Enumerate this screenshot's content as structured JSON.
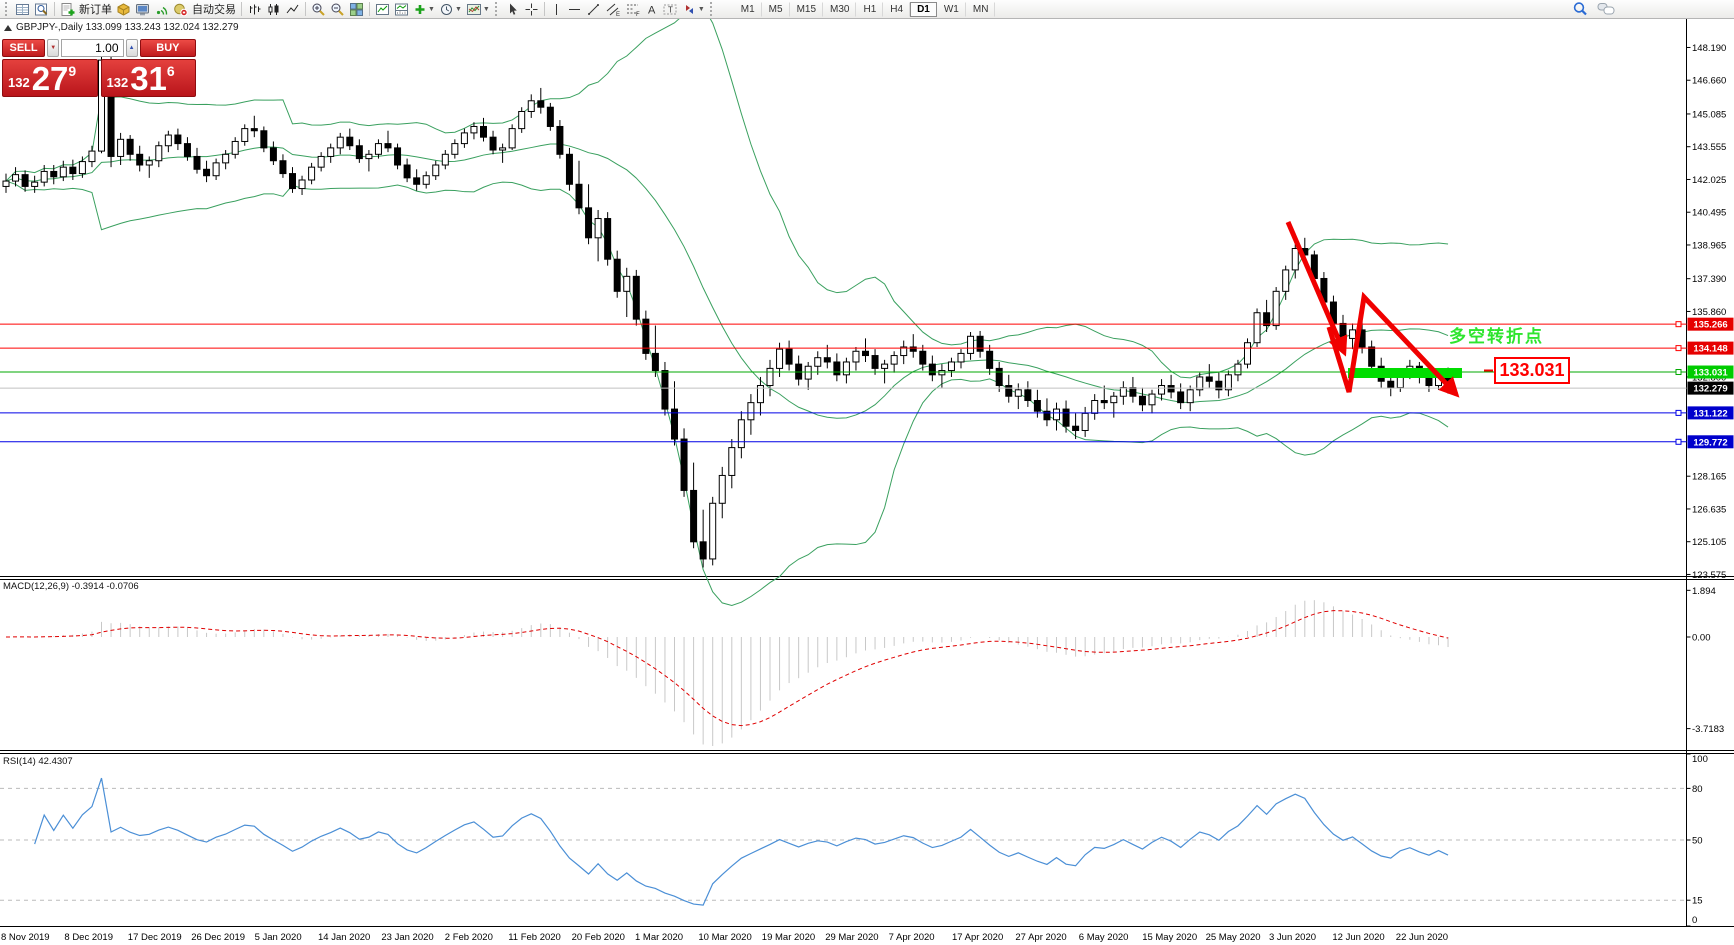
{
  "toolbar": {
    "new_order_label": "新订单",
    "autotrading_label": "自动交易",
    "timeframes": [
      "M1",
      "M5",
      "M15",
      "M30",
      "H1",
      "H4",
      "D1",
      "W1",
      "MN"
    ],
    "active_timeframe": "D1"
  },
  "symbol_header": {
    "text": "GBPJPY-,Daily  133.099 133.243 132.024 132.279"
  },
  "one_click": {
    "sell_label": "SELL",
    "buy_label": "BUY",
    "volume": "1.00",
    "sell_price_prefix": "132",
    "sell_price_main": "27",
    "sell_price_sup": "9",
    "buy_price_prefix": "132",
    "buy_price_main": "31",
    "buy_price_sup": "6"
  },
  "annotations": {
    "turning_point_text": "多空转折点",
    "price_callout": "133.031",
    "highlight_color": "#00dd00",
    "arrow_color": "#f00000"
  },
  "chart_data": {
    "type": "candlestick",
    "symbol": "GBPJPY-",
    "period": "Daily",
    "open": "133.099",
    "high": "133.243",
    "low": "132.024",
    "close": "132.279",
    "ylim": [
      123.55,
      149.52
    ],
    "grid": false,
    "price_ticks": [
      "148.190",
      "146.660",
      "145.085",
      "143.555",
      "142.025",
      "140.495",
      "138.965",
      "137.390",
      "135.860",
      "132.800",
      "128.165",
      "126.635",
      "125.105",
      "123.575"
    ],
    "hlines": [
      {
        "price": 135.266,
        "label": "135.266",
        "color": "#ff0000",
        "tag_bg": "#e60000",
        "handle": true
      },
      {
        "price": 134.148,
        "label": "134.148",
        "color": "#ff0000",
        "tag_bg": "#e60000",
        "handle": true
      },
      {
        "price": 133.031,
        "label": "133.031",
        "color": "#00a800",
        "tag_bg": "#00cc00",
        "handle": true
      },
      {
        "price": 132.279,
        "label": "132.279",
        "color": "#c0c0c0",
        "tag_bg": "#000000",
        "handle": false
      },
      {
        "price": 131.122,
        "label": "131.122",
        "color": "#0000e6",
        "tag_bg": "#0000cc",
        "handle": true
      },
      {
        "price": 129.772,
        "label": "129.772",
        "color": "#0000e6",
        "tag_bg": "#0000cc",
        "handle": true
      }
    ],
    "bollinger": {
      "period": 20,
      "deviation": 2,
      "color": "#3aa05f"
    },
    "macd": {
      "label": "MACD(12,26,9) -0.3914 -0.0706",
      "fast": 12,
      "slow": 26,
      "signal": 9,
      "value": -0.3914,
      "signal_value": -0.0706,
      "bar_color": "#c8c8c8",
      "signal_color": "#e00000",
      "axis_ticks": [
        {
          "t": "1.894",
          "v": 1.894
        },
        {
          "t": "0.00",
          "v": 0
        },
        {
          "t": "-3.7183",
          "v": -3.7183
        }
      ]
    },
    "rsi": {
      "label": "RSI(14) 42.4307",
      "period": 14,
      "value": 42.4307,
      "color": "#4b8fd6",
      "levels": [
        80,
        50,
        15
      ],
      "axis_ticks": [
        {
          "t": "100",
          "v": 100
        },
        {
          "t": "80",
          "v": 80
        },
        {
          "t": "50",
          "v": 50
        },
        {
          "t": "15",
          "v": 15
        },
        {
          "t": "0",
          "v": 0
        }
      ]
    },
    "dates": [
      "8 Nov 2019",
      "8 Dec 2019",
      "17 Dec 2019",
      "26 Dec 2019",
      "5 Jan 2020",
      "14 Jan 2020",
      "23 Jan 2020",
      "2 Feb 2020",
      "11 Feb 2020",
      "20 Feb 2020",
      "1 Mar 2020",
      "10 Mar 2020",
      "19 Mar 2020",
      "29 Mar 2020",
      "7 Apr 2020",
      "17 Apr 2020",
      "27 Apr 2020",
      "6 May 2020",
      "15 May 2020",
      "25 May 2020",
      "3 Jun 2020",
      "12 Jun 2020",
      "22 Jun 2020"
    ],
    "candles": [
      [
        141.7,
        142.3,
        141.4,
        141.95
      ],
      [
        141.95,
        142.6,
        141.7,
        142.25
      ],
      [
        142.25,
        142.45,
        141.45,
        141.7
      ],
      [
        141.7,
        142.2,
        141.4,
        141.9
      ],
      [
        141.9,
        142.7,
        141.7,
        142.4
      ],
      [
        142.4,
        142.7,
        141.8,
        142.15
      ],
      [
        142.15,
        142.9,
        141.95,
        142.6
      ],
      [
        142.6,
        142.95,
        142.0,
        142.3
      ],
      [
        142.3,
        143.1,
        142.1,
        142.86
      ],
      [
        142.86,
        143.6,
        142.6,
        143.35
      ],
      [
        143.35,
        148.1,
        143.25,
        147.6
      ],
      [
        147.6,
        147.8,
        142.6,
        143.1
      ],
      [
        143.1,
        144.2,
        142.7,
        143.9
      ],
      [
        143.9,
        144.1,
        142.9,
        143.2
      ],
      [
        143.2,
        143.6,
        142.4,
        142.7
      ],
      [
        142.7,
        143.1,
        142.1,
        142.9
      ],
      [
        142.9,
        143.8,
        142.6,
        143.6
      ],
      [
        143.6,
        144.3,
        143.3,
        144.1
      ],
      [
        144.1,
        144.4,
        143.4,
        143.7
      ],
      [
        143.7,
        144.0,
        142.9,
        143.1
      ],
      [
        143.1,
        143.5,
        142.3,
        142.5
      ],
      [
        142.5,
        142.9,
        141.9,
        142.2
      ],
      [
        142.2,
        143.0,
        142.0,
        142.8
      ],
      [
        142.8,
        143.4,
        142.5,
        143.2
      ],
      [
        143.2,
        144.0,
        143.0,
        143.8
      ],
      [
        143.8,
        144.6,
        143.6,
        144.4
      ],
      [
        144.4,
        145.0,
        144.0,
        144.3
      ],
      [
        144.3,
        144.5,
        143.3,
        143.5
      ],
      [
        143.5,
        143.8,
        142.7,
        142.9
      ],
      [
        142.9,
        143.2,
        142.1,
        142.3
      ],
      [
        142.3,
        142.6,
        141.4,
        141.6
      ],
      [
        141.6,
        142.2,
        141.3,
        142.0
      ],
      [
        142.0,
        142.8,
        141.8,
        142.6
      ],
      [
        142.6,
        143.3,
        142.4,
        143.1
      ],
      [
        143.1,
        143.7,
        142.8,
        143.5
      ],
      [
        143.5,
        144.2,
        143.2,
        144.0
      ],
      [
        144.0,
        144.4,
        143.4,
        143.6
      ],
      [
        143.6,
        143.9,
        142.8,
        143.0
      ],
      [
        143.0,
        143.4,
        142.4,
        143.2
      ],
      [
        143.2,
        143.9,
        143.0,
        143.7
      ],
      [
        143.7,
        144.3,
        143.3,
        143.5
      ],
      [
        143.5,
        143.7,
        142.5,
        142.7
      ],
      [
        142.7,
        143.0,
        141.9,
        142.1
      ],
      [
        142.1,
        142.5,
        141.5,
        141.8
      ],
      [
        141.8,
        142.4,
        141.6,
        142.2
      ],
      [
        142.2,
        142.9,
        142.0,
        142.7
      ],
      [
        142.7,
        143.4,
        142.5,
        143.2
      ],
      [
        143.2,
        143.9,
        143.0,
        143.7
      ],
      [
        143.7,
        144.4,
        143.5,
        144.2
      ],
      [
        144.2,
        144.7,
        143.9,
        144.5
      ],
      [
        144.5,
        144.9,
        143.8,
        144.0
      ],
      [
        144.0,
        144.3,
        143.2,
        143.4
      ],
      [
        143.4,
        143.7,
        142.8,
        143.5
      ],
      [
        143.5,
        144.6,
        143.4,
        144.4
      ],
      [
        144.4,
        145.4,
        144.2,
        145.2
      ],
      [
        145.2,
        146.0,
        144.9,
        145.7
      ],
      [
        145.7,
        146.3,
        145.1,
        145.4
      ],
      [
        145.4,
        145.6,
        144.3,
        144.5
      ],
      [
        144.5,
        144.8,
        143.0,
        143.2
      ],
      [
        143.2,
        143.5,
        141.5,
        141.8
      ],
      [
        141.8,
        142.9,
        140.4,
        140.7
      ],
      [
        140.7,
        141.8,
        139.0,
        139.3
      ],
      [
        139.3,
        140.6,
        138.2,
        140.2
      ],
      [
        140.2,
        140.5,
        138.0,
        138.3
      ],
      [
        138.3,
        138.7,
        136.5,
        136.8
      ],
      [
        136.8,
        137.9,
        135.6,
        137.5
      ],
      [
        137.5,
        137.8,
        135.2,
        135.5
      ],
      [
        135.5,
        135.9,
        133.6,
        133.9
      ],
      [
        133.9,
        135.2,
        132.8,
        133.1
      ],
      [
        133.1,
        133.5,
        131.0,
        131.3
      ],
      [
        131.3,
        132.6,
        129.6,
        129.9
      ],
      [
        129.9,
        130.4,
        127.2,
        127.5
      ],
      [
        127.5,
        128.8,
        124.8,
        125.1
      ],
      [
        125.1,
        126.6,
        123.9,
        124.3
      ],
      [
        124.3,
        127.2,
        124.0,
        126.9
      ],
      [
        126.9,
        128.6,
        126.2,
        128.2
      ],
      [
        128.2,
        129.9,
        127.6,
        129.5
      ],
      [
        129.5,
        131.2,
        129.0,
        130.8
      ],
      [
        130.8,
        132.0,
        130.1,
        131.6
      ],
      [
        131.6,
        132.8,
        131.0,
        132.4
      ],
      [
        132.4,
        133.6,
        131.9,
        133.2
      ],
      [
        133.2,
        134.4,
        132.8,
        134.1
      ],
      [
        134.1,
        134.5,
        133.1,
        133.4
      ],
      [
        133.4,
        133.8,
        132.4,
        132.7
      ],
      [
        132.7,
        133.5,
        132.2,
        133.3
      ],
      [
        133.3,
        134.0,
        132.9,
        133.7
      ],
      [
        133.7,
        134.3,
        133.2,
        133.5
      ],
      [
        133.5,
        133.9,
        132.6,
        132.9
      ],
      [
        132.9,
        133.7,
        132.5,
        133.5
      ],
      [
        133.5,
        134.2,
        133.1,
        134.0
      ],
      [
        134.0,
        134.6,
        133.5,
        133.8
      ],
      [
        133.8,
        134.1,
        132.9,
        133.2
      ],
      [
        133.2,
        133.6,
        132.5,
        133.4
      ],
      [
        133.4,
        134.0,
        133.0,
        133.8
      ],
      [
        133.8,
        134.5,
        133.4,
        134.2
      ],
      [
        134.2,
        134.8,
        133.7,
        134.0
      ],
      [
        134.0,
        134.3,
        133.1,
        133.4
      ],
      [
        133.4,
        133.8,
        132.6,
        132.9
      ],
      [
        132.9,
        133.4,
        132.3,
        133.1
      ],
      [
        133.1,
        133.7,
        132.8,
        133.5
      ],
      [
        133.5,
        134.1,
        133.2,
        133.9
      ],
      [
        133.9,
        134.9,
        133.6,
        134.7
      ],
      [
        134.7,
        134.95,
        133.7,
        134.0
      ],
      [
        134.0,
        134.3,
        132.9,
        133.2
      ],
      [
        133.2,
        133.5,
        132.1,
        132.4
      ],
      [
        132.4,
        132.9,
        131.6,
        131.9
      ],
      [
        131.9,
        132.5,
        131.3,
        132.2
      ],
      [
        132.2,
        132.6,
        131.4,
        131.7
      ],
      [
        131.7,
        132.2,
        130.9,
        131.2
      ],
      [
        131.2,
        131.8,
        130.5,
        130.8
      ],
      [
        130.8,
        131.6,
        130.3,
        131.3
      ],
      [
        131.3,
        131.7,
        130.2,
        130.5
      ],
      [
        130.5,
        131.1,
        129.9,
        130.3
      ],
      [
        130.3,
        131.4,
        130.0,
        131.1
      ],
      [
        131.1,
        132.0,
        130.8,
        131.7
      ],
      [
        131.7,
        132.4,
        131.3,
        131.6
      ],
      [
        131.6,
        132.1,
        130.9,
        131.9
      ],
      [
        131.9,
        132.6,
        131.5,
        132.3
      ],
      [
        132.3,
        132.8,
        131.6,
        131.9
      ],
      [
        131.9,
        132.3,
        131.2,
        131.5
      ],
      [
        131.5,
        132.2,
        131.1,
        132.0
      ],
      [
        132.0,
        132.7,
        131.7,
        132.4
      ],
      [
        132.4,
        132.9,
        131.8,
        132.1
      ],
      [
        132.1,
        132.5,
        131.3,
        131.6
      ],
      [
        131.6,
        132.4,
        131.2,
        132.2
      ],
      [
        132.2,
        133.0,
        131.9,
        132.8
      ],
      [
        132.8,
        133.4,
        132.3,
        132.6
      ],
      [
        132.6,
        133.0,
        131.8,
        132.2
      ],
      [
        132.2,
        133.1,
        131.9,
        132.9
      ],
      [
        132.9,
        133.6,
        132.6,
        133.4
      ],
      [
        133.4,
        134.6,
        133.2,
        134.4
      ],
      [
        134.4,
        136.0,
        134.2,
        135.8
      ],
      [
        135.8,
        136.4,
        134.9,
        135.2
      ],
      [
        135.2,
        137.0,
        135.0,
        136.8
      ],
      [
        136.8,
        138.0,
        136.4,
        137.8
      ],
      [
        137.8,
        139.0,
        137.4,
        138.8
      ],
      [
        138.8,
        139.3,
        138.2,
        138.5
      ],
      [
        138.5,
        138.7,
        137.1,
        137.4
      ],
      [
        137.4,
        137.7,
        136.0,
        136.3
      ],
      [
        136.3,
        136.6,
        135.0,
        135.3
      ],
      [
        135.3,
        135.7,
        134.3,
        134.6
      ],
      [
        134.6,
        135.3,
        134.1,
        135.0
      ],
      [
        135.0,
        135.4,
        133.9,
        134.2
      ],
      [
        134.2,
        134.5,
        133.0,
        133.3
      ],
      [
        133.3,
        133.7,
        132.3,
        132.6
      ],
      [
        132.6,
        133.0,
        131.9,
        132.3
      ],
      [
        132.3,
        133.2,
        132.1,
        133.0
      ],
      [
        133.0,
        133.6,
        132.7,
        133.3
      ],
      [
        133.3,
        133.5,
        132.5,
        132.8
      ],
      [
        132.8,
        133.1,
        132.1,
        132.4
      ],
      [
        132.4,
        133.0,
        132.2,
        132.8
      ],
      [
        132.8,
        133.24,
        132.02,
        132.28
      ]
    ]
  }
}
